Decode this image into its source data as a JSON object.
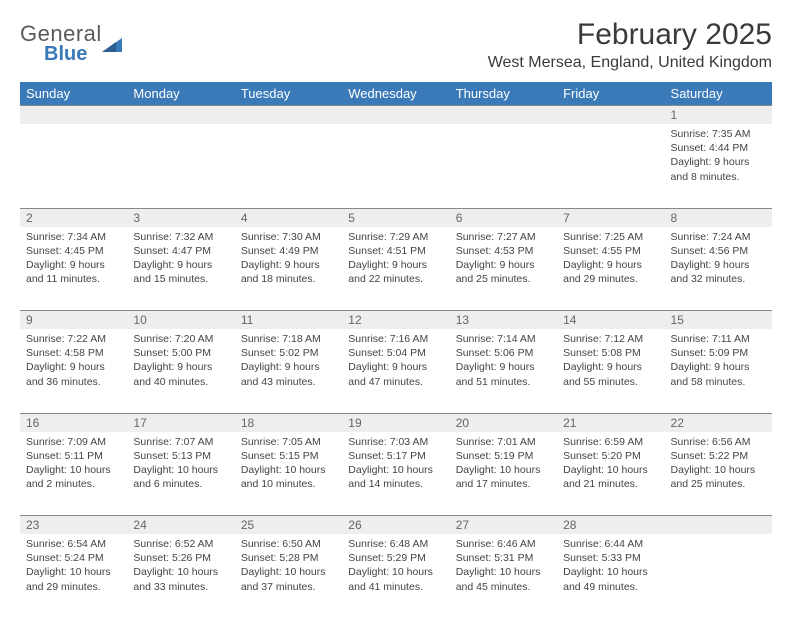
{
  "logo": {
    "word1": "General",
    "word2": "Blue",
    "word1_color": "#5a5a5a",
    "word2_color": "#3a7ab8",
    "triangle_color": "#3a7ab8"
  },
  "title": "February 2025",
  "location": "West Mersea, England, United Kingdom",
  "header_bg": "#3a7ab8",
  "header_fg": "#ffffff",
  "daynum_bg": "#eeeeee",
  "daynum_border": "#888888",
  "day_headers": [
    "Sunday",
    "Monday",
    "Tuesday",
    "Wednesday",
    "Thursday",
    "Friday",
    "Saturday"
  ],
  "weeks": [
    [
      {
        "n": "",
        "sr": "",
        "ss": "",
        "dl": ""
      },
      {
        "n": "",
        "sr": "",
        "ss": "",
        "dl": ""
      },
      {
        "n": "",
        "sr": "",
        "ss": "",
        "dl": ""
      },
      {
        "n": "",
        "sr": "",
        "ss": "",
        "dl": ""
      },
      {
        "n": "",
        "sr": "",
        "ss": "",
        "dl": ""
      },
      {
        "n": "",
        "sr": "",
        "ss": "",
        "dl": ""
      },
      {
        "n": "1",
        "sr": "Sunrise: 7:35 AM",
        "ss": "Sunset: 4:44 PM",
        "dl": "Daylight: 9 hours and 8 minutes."
      }
    ],
    [
      {
        "n": "2",
        "sr": "Sunrise: 7:34 AM",
        "ss": "Sunset: 4:45 PM",
        "dl": "Daylight: 9 hours and 11 minutes."
      },
      {
        "n": "3",
        "sr": "Sunrise: 7:32 AM",
        "ss": "Sunset: 4:47 PM",
        "dl": "Daylight: 9 hours and 15 minutes."
      },
      {
        "n": "4",
        "sr": "Sunrise: 7:30 AM",
        "ss": "Sunset: 4:49 PM",
        "dl": "Daylight: 9 hours and 18 minutes."
      },
      {
        "n": "5",
        "sr": "Sunrise: 7:29 AM",
        "ss": "Sunset: 4:51 PM",
        "dl": "Daylight: 9 hours and 22 minutes."
      },
      {
        "n": "6",
        "sr": "Sunrise: 7:27 AM",
        "ss": "Sunset: 4:53 PM",
        "dl": "Daylight: 9 hours and 25 minutes."
      },
      {
        "n": "7",
        "sr": "Sunrise: 7:25 AM",
        "ss": "Sunset: 4:55 PM",
        "dl": "Daylight: 9 hours and 29 minutes."
      },
      {
        "n": "8",
        "sr": "Sunrise: 7:24 AM",
        "ss": "Sunset: 4:56 PM",
        "dl": "Daylight: 9 hours and 32 minutes."
      }
    ],
    [
      {
        "n": "9",
        "sr": "Sunrise: 7:22 AM",
        "ss": "Sunset: 4:58 PM",
        "dl": "Daylight: 9 hours and 36 minutes."
      },
      {
        "n": "10",
        "sr": "Sunrise: 7:20 AM",
        "ss": "Sunset: 5:00 PM",
        "dl": "Daylight: 9 hours and 40 minutes."
      },
      {
        "n": "11",
        "sr": "Sunrise: 7:18 AM",
        "ss": "Sunset: 5:02 PM",
        "dl": "Daylight: 9 hours and 43 minutes."
      },
      {
        "n": "12",
        "sr": "Sunrise: 7:16 AM",
        "ss": "Sunset: 5:04 PM",
        "dl": "Daylight: 9 hours and 47 minutes."
      },
      {
        "n": "13",
        "sr": "Sunrise: 7:14 AM",
        "ss": "Sunset: 5:06 PM",
        "dl": "Daylight: 9 hours and 51 minutes."
      },
      {
        "n": "14",
        "sr": "Sunrise: 7:12 AM",
        "ss": "Sunset: 5:08 PM",
        "dl": "Daylight: 9 hours and 55 minutes."
      },
      {
        "n": "15",
        "sr": "Sunrise: 7:11 AM",
        "ss": "Sunset: 5:09 PM",
        "dl": "Daylight: 9 hours and 58 minutes."
      }
    ],
    [
      {
        "n": "16",
        "sr": "Sunrise: 7:09 AM",
        "ss": "Sunset: 5:11 PM",
        "dl": "Daylight: 10 hours and 2 minutes."
      },
      {
        "n": "17",
        "sr": "Sunrise: 7:07 AM",
        "ss": "Sunset: 5:13 PM",
        "dl": "Daylight: 10 hours and 6 minutes."
      },
      {
        "n": "18",
        "sr": "Sunrise: 7:05 AM",
        "ss": "Sunset: 5:15 PM",
        "dl": "Daylight: 10 hours and 10 minutes."
      },
      {
        "n": "19",
        "sr": "Sunrise: 7:03 AM",
        "ss": "Sunset: 5:17 PM",
        "dl": "Daylight: 10 hours and 14 minutes."
      },
      {
        "n": "20",
        "sr": "Sunrise: 7:01 AM",
        "ss": "Sunset: 5:19 PM",
        "dl": "Daylight: 10 hours and 17 minutes."
      },
      {
        "n": "21",
        "sr": "Sunrise: 6:59 AM",
        "ss": "Sunset: 5:20 PM",
        "dl": "Daylight: 10 hours and 21 minutes."
      },
      {
        "n": "22",
        "sr": "Sunrise: 6:56 AM",
        "ss": "Sunset: 5:22 PM",
        "dl": "Daylight: 10 hours and 25 minutes."
      }
    ],
    [
      {
        "n": "23",
        "sr": "Sunrise: 6:54 AM",
        "ss": "Sunset: 5:24 PM",
        "dl": "Daylight: 10 hours and 29 minutes."
      },
      {
        "n": "24",
        "sr": "Sunrise: 6:52 AM",
        "ss": "Sunset: 5:26 PM",
        "dl": "Daylight: 10 hours and 33 minutes."
      },
      {
        "n": "25",
        "sr": "Sunrise: 6:50 AM",
        "ss": "Sunset: 5:28 PM",
        "dl": "Daylight: 10 hours and 37 minutes."
      },
      {
        "n": "26",
        "sr": "Sunrise: 6:48 AM",
        "ss": "Sunset: 5:29 PM",
        "dl": "Daylight: 10 hours and 41 minutes."
      },
      {
        "n": "27",
        "sr": "Sunrise: 6:46 AM",
        "ss": "Sunset: 5:31 PM",
        "dl": "Daylight: 10 hours and 45 minutes."
      },
      {
        "n": "28",
        "sr": "Sunrise: 6:44 AM",
        "ss": "Sunset: 5:33 PM",
        "dl": "Daylight: 10 hours and 49 minutes."
      },
      {
        "n": "",
        "sr": "",
        "ss": "",
        "dl": ""
      }
    ]
  ]
}
